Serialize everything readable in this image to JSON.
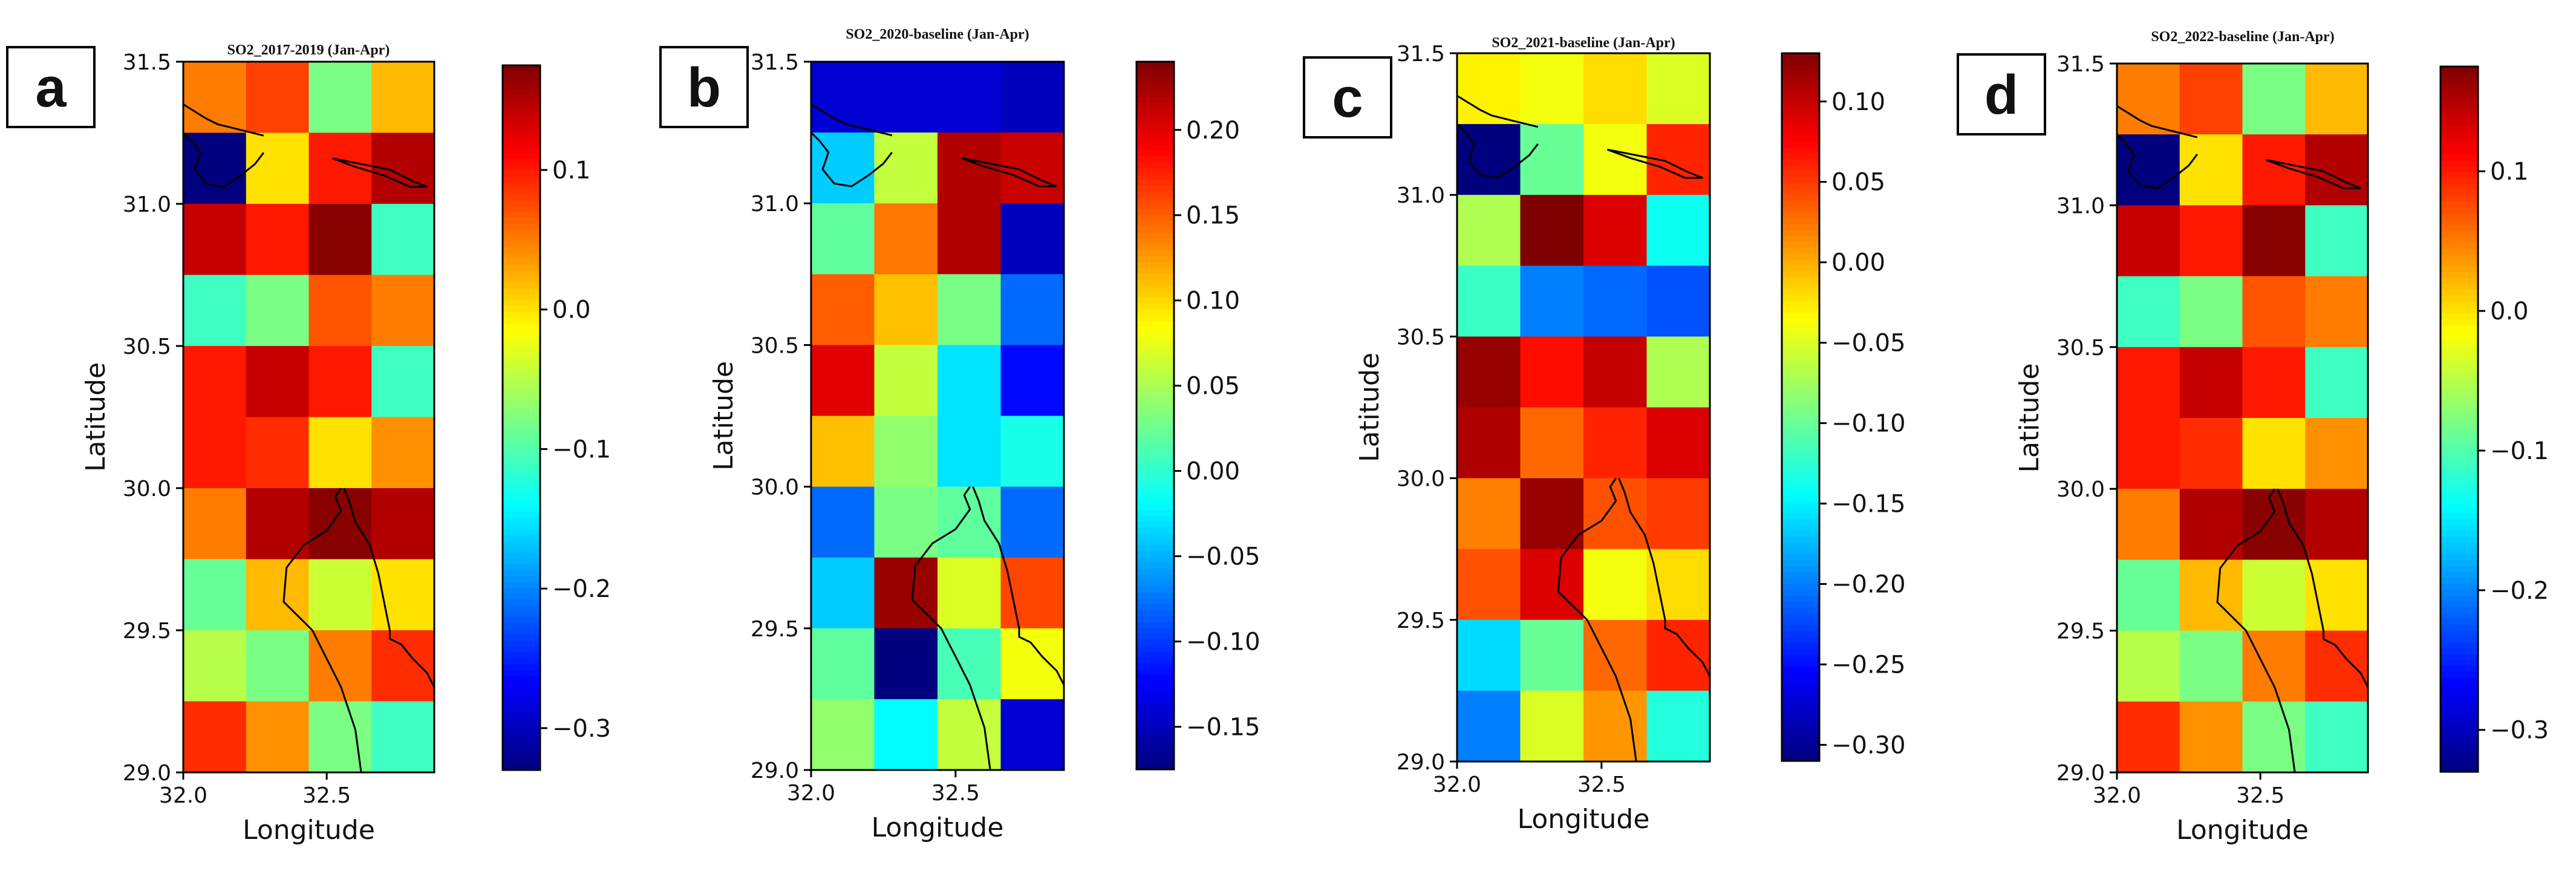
{
  "figure": {
    "colormap": "jet",
    "colormap_stops": [
      "#00007f",
      "#0000ff",
      "#007fff",
      "#00ffff",
      "#7fff7f",
      "#ffff00",
      "#ff7f00",
      "#ff0000",
      "#7f0000"
    ]
  },
  "chart_data": [
    {
      "type": "heatmap",
      "panel_label": "a",
      "title": "SO2_2017-2019 (Jan-Apr)",
      "xlabel": "Longitude",
      "ylabel": "Latitude",
      "xlim": [
        32.0,
        32.875
      ],
      "ylim": [
        29.0,
        31.5
      ],
      "xticks": [
        "32.0",
        "32.5"
      ],
      "yticks": [
        "29.0",
        "29.5",
        "30.0",
        "30.5",
        "31.0",
        "31.5"
      ],
      "colorbar": {
        "min": -0.33,
        "max": 0.175,
        "ticks": [
          "0.1",
          "0.0",
          "−0.1",
          "−0.2",
          "−0.3"
        ],
        "tick_values": [
          0.1,
          0.0,
          -0.1,
          -0.2,
          -0.3
        ]
      },
      "grid_rows_top_to_bottom": [
        [
          0.05,
          0.08,
          -0.08,
          0.02
        ],
        [
          -0.33,
          0.0,
          0.1,
          0.15
        ],
        [
          0.14,
          0.1,
          0.17,
          -0.11
        ],
        [
          -0.11,
          -0.08,
          0.07,
          0.05
        ],
        [
          0.1,
          0.14,
          0.1,
          -0.11
        ],
        [
          0.1,
          0.09,
          0.0,
          0.04
        ],
        [
          0.05,
          0.15,
          0.17,
          0.15
        ],
        [
          -0.09,
          0.02,
          -0.04,
          0.0
        ],
        [
          -0.05,
          -0.08,
          0.05,
          0.09
        ],
        [
          0.09,
          0.04,
          -0.08,
          -0.11
        ]
      ]
    },
    {
      "type": "heatmap",
      "panel_label": "b",
      "title": "SO2_2020-baseline (Jan-Apr)",
      "xlabel": "Longitude",
      "ylabel": "Latitude",
      "xlim": [
        32.0,
        32.875
      ],
      "ylim": [
        29.0,
        31.5
      ],
      "xticks": [
        "32.0",
        "32.5"
      ],
      "yticks": [
        "29.0",
        "29.5",
        "30.0",
        "30.5",
        "31.0",
        "31.5"
      ],
      "colorbar": {
        "min": -0.175,
        "max": 0.24,
        "ticks": [
          "0.20",
          "0.15",
          "0.10",
          "0.05",
          "0.00",
          "−0.05",
          "−0.10",
          "−0.15"
        ],
        "tick_values": [
          0.2,
          0.15,
          0.1,
          0.05,
          0.0,
          -0.05,
          -0.1,
          -0.15
        ]
      },
      "grid_rows_top_to_bottom": [
        [
          -0.14,
          -0.14,
          -0.14,
          -0.15
        ],
        [
          -0.04,
          0.06,
          0.22,
          0.21
        ],
        [
          0.02,
          0.14,
          0.22,
          -0.15
        ],
        [
          0.15,
          0.11,
          0.03,
          -0.08
        ],
        [
          0.2,
          0.06,
          -0.03,
          -0.12
        ],
        [
          0.11,
          0.04,
          -0.03,
          -0.01
        ],
        [
          -0.08,
          0.03,
          0.02,
          -0.08
        ],
        [
          -0.04,
          0.23,
          0.07,
          0.16
        ],
        [
          0.02,
          -0.175,
          0.01,
          0.08
        ],
        [
          0.04,
          -0.02,
          0.06,
          -0.14
        ]
      ]
    },
    {
      "type": "heatmap",
      "panel_label": "c",
      "title": "SO2_2021-baseline (Jan-Apr)",
      "xlabel": "Longitude",
      "ylabel": "Latitude",
      "xlim": [
        32.0,
        32.875
      ],
      "ylim": [
        29.0,
        31.5
      ],
      "xticks": [
        "32.0",
        "32.5"
      ],
      "yticks": [
        "29.0",
        "29.5",
        "30.0",
        "30.5",
        "31.0",
        "31.5"
      ],
      "colorbar": {
        "min": -0.31,
        "max": 0.13,
        "ticks": [
          "0.10",
          "0.05",
          "0.00",
          "−0.05",
          "−0.10",
          "−0.15",
          "−0.20",
          "−0.25",
          "−0.30"
        ],
        "tick_values": [
          0.1,
          0.05,
          0.0,
          -0.05,
          -0.1,
          -0.15,
          -0.2,
          -0.25,
          -0.3
        ]
      },
      "grid_rows_top_to_bottom": [
        [
          -0.03,
          -0.04,
          -0.02,
          -0.05
        ],
        [
          -0.31,
          -0.1,
          -0.04,
          0.06
        ],
        [
          -0.07,
          0.13,
          0.09,
          -0.14
        ],
        [
          -0.12,
          -0.2,
          -0.21,
          -0.22
        ],
        [
          0.12,
          0.07,
          0.1,
          -0.07
        ],
        [
          0.11,
          0.03,
          0.06,
          0.09
        ],
        [
          0.02,
          0.12,
          0.04,
          0.05
        ],
        [
          0.04,
          0.09,
          -0.04,
          -0.02
        ],
        [
          -0.16,
          -0.1,
          0.03,
          0.06
        ],
        [
          -0.2,
          -0.05,
          0.01,
          -0.13
        ]
      ]
    },
    {
      "type": "heatmap",
      "panel_label": "d",
      "title": "SO2_2022-baseline (Jan-Apr)",
      "xlabel": "Longitude",
      "ylabel": "Latitude",
      "xlim": [
        32.0,
        32.875
      ],
      "ylim": [
        29.0,
        31.5
      ],
      "xticks": [
        "32.0",
        "32.5"
      ],
      "yticks": [
        "29.0",
        "29.5",
        "30.0",
        "30.5",
        "31.0",
        "31.5"
      ],
      "colorbar": {
        "min": -0.33,
        "max": 0.175,
        "ticks": [
          "0.1",
          "0.0",
          "−0.1",
          "−0.2",
          "−0.3"
        ],
        "tick_values": [
          0.1,
          0.0,
          -0.1,
          -0.2,
          -0.3
        ]
      },
      "grid_rows_top_to_bottom": [
        [
          0.05,
          0.08,
          -0.08,
          0.02
        ],
        [
          -0.33,
          0.0,
          0.1,
          0.15
        ],
        [
          0.14,
          0.1,
          0.17,
          -0.11
        ],
        [
          -0.11,
          -0.08,
          0.07,
          0.05
        ],
        [
          0.1,
          0.14,
          0.1,
          -0.11
        ],
        [
          0.1,
          0.09,
          0.0,
          0.04
        ],
        [
          0.05,
          0.15,
          0.17,
          0.15
        ],
        [
          -0.09,
          0.02,
          -0.04,
          0.0
        ],
        [
          -0.05,
          -0.08,
          0.05,
          0.09
        ],
        [
          0.09,
          0.04,
          -0.08,
          -0.11
        ]
      ]
    }
  ],
  "coastlines": {
    "description_units": "longitude/latitude",
    "mediterranean_coast": [
      [
        32.0,
        31.35
      ],
      [
        32.08,
        31.3
      ],
      [
        32.12,
        31.28
      ],
      [
        32.16,
        31.27
      ],
      [
        32.2,
        31.26
      ],
      [
        32.28,
        31.24
      ]
    ],
    "bardawil_lagoon": [
      [
        32.52,
        31.16
      ],
      [
        32.62,
        31.14
      ],
      [
        32.72,
        31.12
      ],
      [
        32.8,
        31.08
      ],
      [
        32.85,
        31.06
      ],
      [
        32.79,
        31.06
      ],
      [
        32.7,
        31.1
      ],
      [
        32.6,
        31.13
      ],
      [
        32.52,
        31.16
      ]
    ],
    "manzala_lake": [
      [
        32.0,
        31.25
      ],
      [
        32.03,
        31.22
      ],
      [
        32.06,
        31.18
      ],
      [
        32.04,
        31.12
      ],
      [
        32.08,
        31.07
      ],
      [
        32.14,
        31.06
      ],
      [
        32.2,
        31.1
      ],
      [
        32.25,
        31.14
      ],
      [
        32.28,
        31.18
      ]
    ],
    "suez_gulf_west": [
      [
        32.55,
        30.0
      ],
      [
        32.53,
        29.97
      ],
      [
        32.55,
        29.92
      ],
      [
        32.5,
        29.85
      ],
      [
        32.42,
        29.8
      ],
      [
        32.36,
        29.72
      ],
      [
        32.35,
        29.6
      ],
      [
        32.45,
        29.5
      ],
      [
        32.5,
        29.4
      ],
      [
        32.55,
        29.3
      ],
      [
        32.6,
        29.15
      ],
      [
        32.62,
        29.0
      ]
    ],
    "suez_gulf_east": [
      [
        32.56,
        30.0
      ],
      [
        32.58,
        29.95
      ],
      [
        32.6,
        29.88
      ],
      [
        32.65,
        29.8
      ],
      [
        32.68,
        29.7
      ],
      [
        32.7,
        29.6
      ],
      [
        32.72,
        29.5
      ],
      [
        32.72,
        29.47
      ],
      [
        32.76,
        29.45
      ],
      [
        32.8,
        29.4
      ],
      [
        32.85,
        29.35
      ],
      [
        32.875,
        29.3
      ]
    ]
  }
}
